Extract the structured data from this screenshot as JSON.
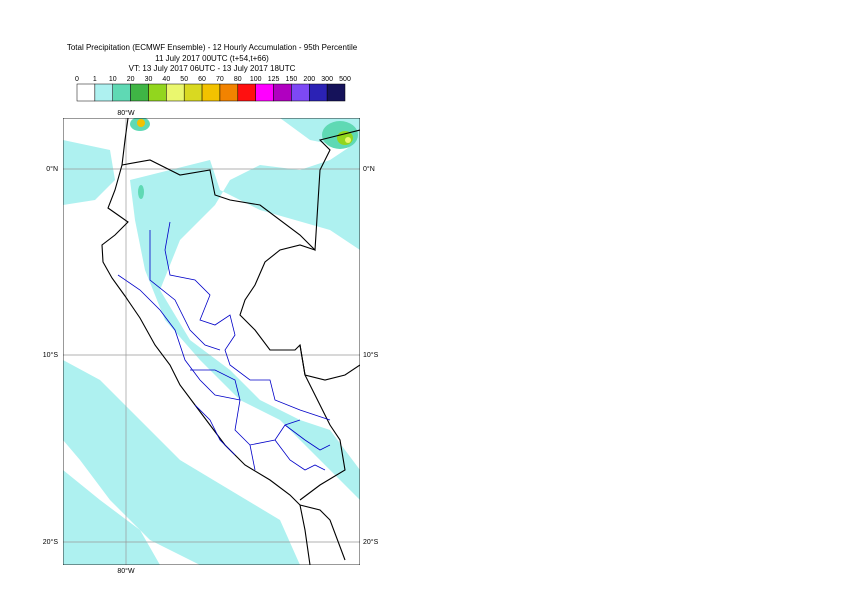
{
  "header": {
    "title": "Total Precipitation (ECMWF Ensemble) - 12 Hourly Accumulation - 95th Percentile",
    "line2": "11 July 2017 00UTC (t+54,t+66)",
    "line3": "VT: 13 July 2017 06UTC - 13 July 2017 18UTC"
  },
  "legend": {
    "labels": [
      "0",
      "1",
      "10",
      "20",
      "30",
      "40",
      "50",
      "60",
      "70",
      "80",
      "100",
      "125",
      "150",
      "200",
      "300",
      "500"
    ],
    "colors": [
      "#ffffff",
      "#aef1f0",
      "#5fd9b4",
      "#3fb545",
      "#92d61e",
      "#eaf76e",
      "#d9d921",
      "#f2c200",
      "#f28300",
      "#ff1010",
      "#ff00ff",
      "#b000c0",
      "#7d49f5",
      "#2b22b5",
      "#15125a"
    ]
  },
  "map": {
    "lon_label_top": "80°W",
    "lon_label_bottom": "80°W",
    "lat_labels_left": [
      "0°N",
      "10°S",
      "20°S"
    ],
    "lat_labels_right": [
      "0°N",
      "10°S",
      "20°S"
    ]
  }
}
